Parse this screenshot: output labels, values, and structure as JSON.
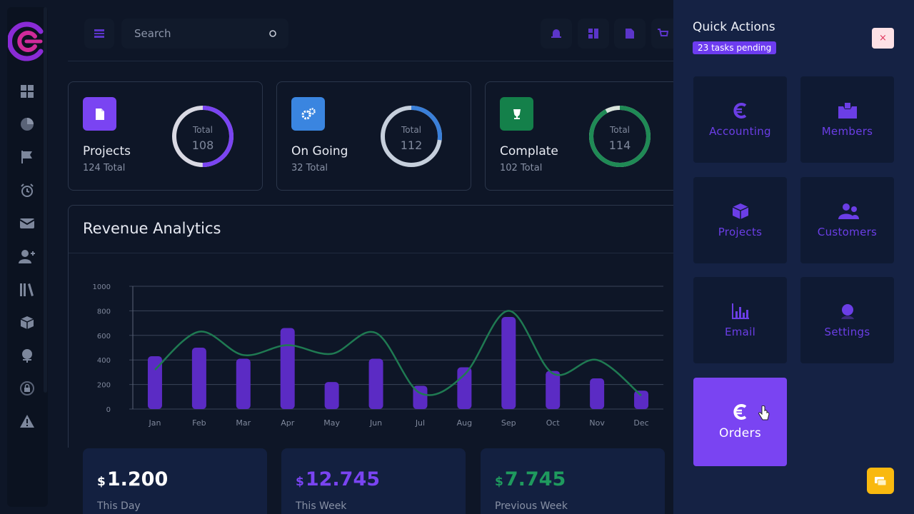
{
  "search": {
    "placeholder": "Search"
  },
  "stats": [
    {
      "title": "Projects",
      "sub": "124 Total",
      "ring_label": "Total",
      "ring_value": "108",
      "ring_pct": 0.5,
      "ring_color": "#7a44f2",
      "icon_bg": "#7a44f2",
      "icon": "file-icon"
    },
    {
      "title": "On Going",
      "sub": "32 Total",
      "ring_label": "Total",
      "ring_value": "112",
      "ring_pct": 0.27,
      "ring_color": "#3a7fd8",
      "icon_bg": "#3a85e0",
      "icon": "gears-icon"
    },
    {
      "title": "Complate",
      "sub": "102 Total",
      "ring_label": "Total",
      "ring_value": "114",
      "ring_pct": 0.92,
      "ring_color": "#1f8a55",
      "icon_bg": "#14804a",
      "icon": "trophy-icon"
    }
  ],
  "revenue": {
    "title": "Revenue Analytics"
  },
  "chart_data": {
    "type": "bar",
    "categories": [
      "Jan",
      "Feb",
      "Mar",
      "Apr",
      "May",
      "Jun",
      "Jul",
      "Aug",
      "Sep",
      "Oct",
      "Nov",
      "Dec"
    ],
    "series": [
      {
        "type": "bar",
        "values": [
          430,
          500,
          410,
          660,
          220,
          410,
          190,
          340,
          750,
          310,
          250,
          150
        ],
        "color": "#5b2bc4"
      },
      {
        "type": "line",
        "values": [
          320,
          630,
          440,
          520,
          450,
          620,
          130,
          280,
          800,
          290,
          400,
          110
        ],
        "color": "#1f7a52"
      }
    ],
    "yticks": [
      0,
      200,
      400,
      600,
      800,
      1000
    ],
    "ylim": [
      0,
      1000
    ],
    "grid": true
  },
  "money": [
    {
      "currency": "$",
      "value": "1.200",
      "label": "This Day",
      "color": "#ffffff"
    },
    {
      "currency": "$",
      "value": "12.745",
      "label": "This Week",
      "color": "#7a44f2"
    },
    {
      "currency": "$",
      "value": "7.745",
      "label": "Previous Week",
      "color": "#1f9a5e"
    }
  ],
  "quick_actions": {
    "title": "Quick Actions",
    "badge": "23 tasks pending",
    "close": "×",
    "tiles": [
      {
        "label": "Accounting",
        "icon": "euro-icon"
      },
      {
        "label": "Members",
        "icon": "mailbox-icon"
      },
      {
        "label": "Projects",
        "icon": "cube-icon"
      },
      {
        "label": "Customers",
        "icon": "users-icon"
      },
      {
        "label": "Email",
        "icon": "bar-chart-icon"
      },
      {
        "label": "Settings",
        "icon": "user-cog-icon"
      },
      {
        "label": "Orders",
        "icon": "euro-icon"
      }
    ]
  }
}
